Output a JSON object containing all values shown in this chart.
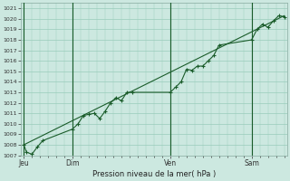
{
  "title": "Pression niveau de la mer( hPa )",
  "bg_color": "#cce8e0",
  "grid_color": "#99ccbb",
  "line_color": "#1a5c2a",
  "marker_color": "#1a5c2a",
  "ylim": [
    1007,
    1021.5
  ],
  "yticks": [
    1007,
    1008,
    1009,
    1010,
    1011,
    1012,
    1013,
    1014,
    1015,
    1016,
    1017,
    1018,
    1019,
    1020,
    1021
  ],
  "day_labels": [
    "Jeu",
    "Dim",
    "Ven",
    "Sam"
  ],
  "day_positions": [
    0,
    18,
    54,
    84
  ],
  "series1_x": [
    0,
    1,
    3,
    5,
    7,
    18,
    20,
    22,
    24,
    26,
    28,
    30,
    32,
    34,
    36,
    38,
    40,
    54,
    56,
    58,
    60,
    62,
    64,
    66,
    68,
    70,
    72,
    84,
    86,
    88,
    90,
    92,
    94,
    96
  ],
  "series1_y": [
    1008.0,
    1007.3,
    1007.1,
    1007.8,
    1008.4,
    1009.5,
    1010.0,
    1010.8,
    1010.9,
    1011.0,
    1010.5,
    1011.2,
    1012.0,
    1012.5,
    1012.2,
    1013.0,
    1013.0,
    1013.0,
    1013.5,
    1014.0,
    1015.2,
    1015.1,
    1015.5,
    1015.5,
    1016.0,
    1016.5,
    1017.5,
    1018.0,
    1019.0,
    1019.5,
    1019.2,
    1019.8,
    1020.3,
    1020.2
  ],
  "series2_x": [
    0,
    96
  ],
  "series2_y": [
    1008.0,
    1020.3
  ],
  "vline_positions": [
    0,
    18,
    54,
    84
  ],
  "xlim": [
    -1,
    97
  ]
}
